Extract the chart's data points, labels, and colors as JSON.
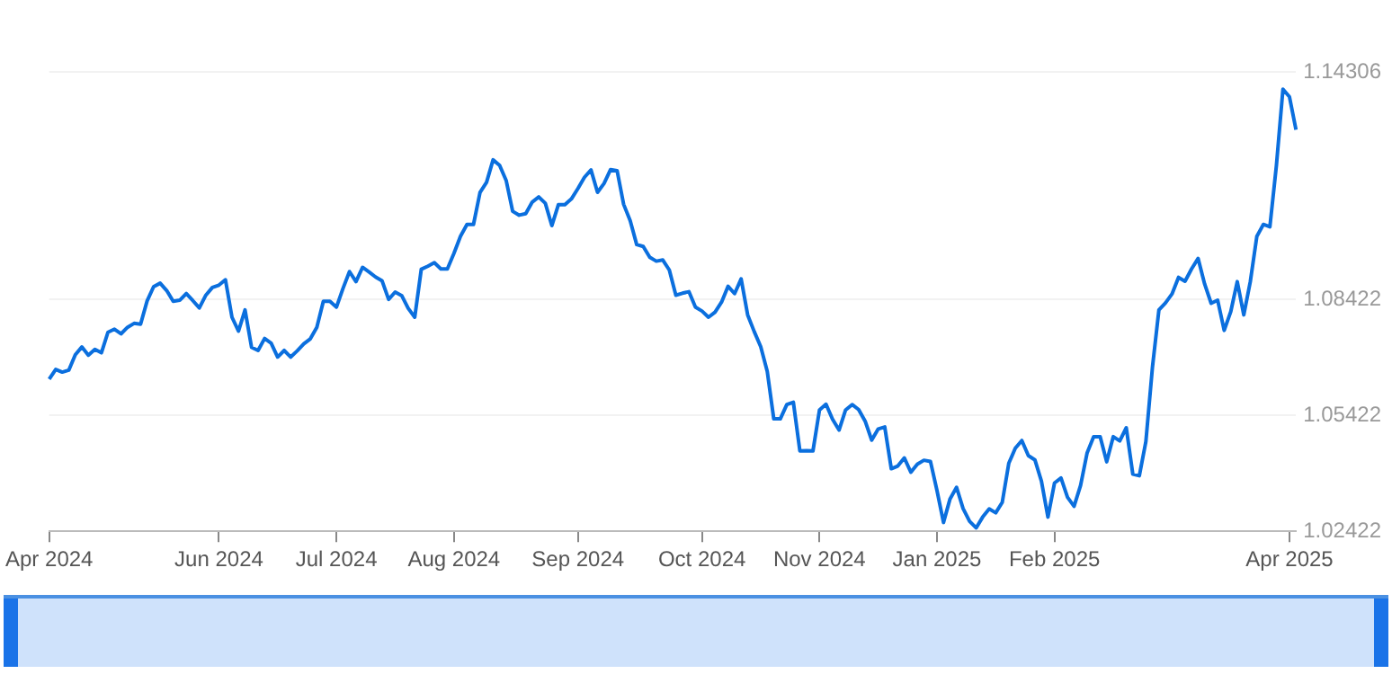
{
  "chart_data": {
    "type": "line",
    "marker": "none",
    "grid": "y",
    "categories": [
      "Apr 2024",
      null,
      null,
      null,
      null,
      null,
      null,
      null,
      null,
      null,
      null,
      null,
      null,
      null,
      null,
      null,
      null,
      null,
      null,
      null,
      null,
      null,
      null,
      null,
      null,
      null,
      "Jun 2024",
      null,
      null,
      null,
      null,
      null,
      null,
      null,
      null,
      null,
      null,
      null,
      null,
      null,
      null,
      null,
      null,
      null,
      "Jul 2024",
      null,
      null,
      null,
      null,
      null,
      null,
      null,
      null,
      null,
      null,
      null,
      null,
      null,
      null,
      null,
      null,
      null,
      "Aug 2024",
      null,
      null,
      null,
      null,
      null,
      null,
      null,
      null,
      null,
      null,
      null,
      null,
      null,
      null,
      null,
      null,
      null,
      null,
      "Sep 2024",
      null,
      null,
      null,
      null,
      null,
      null,
      null,
      null,
      null,
      null,
      null,
      null,
      null,
      null,
      null,
      null,
      null,
      null,
      "Oct 2024",
      null,
      null,
      null,
      null,
      null,
      null,
      null,
      null,
      null,
      null,
      null,
      null,
      null,
      null,
      null,
      null,
      null,
      "Nov 2024",
      null,
      null,
      null,
      null,
      null,
      null,
      null,
      null,
      null,
      null,
      null,
      null,
      null,
      null,
      null,
      null,
      null,
      "Jan 2025",
      null,
      null,
      null,
      null,
      null,
      null,
      null,
      null,
      null,
      null,
      null,
      null,
      null,
      null,
      null,
      null,
      null,
      "Feb 2025",
      null,
      null,
      null,
      null,
      null,
      null,
      null,
      null,
      null,
      null,
      null,
      null,
      null,
      null,
      null,
      null,
      null,
      null,
      null,
      null,
      null,
      null,
      null,
      null,
      null,
      null,
      null,
      null,
      null,
      null,
      null,
      null,
      null,
      null,
      null,
      "Apr 2025",
      null
    ],
    "series": [
      {
        "color": "#0b6fde",
        "values": [
          1.0636,
          1.0661,
          1.0654,
          1.0659,
          1.0699,
          1.0719,
          1.0698,
          1.0713,
          1.0704,
          1.0757,
          1.0765,
          1.0753,
          1.077,
          1.078,
          1.0778,
          1.0838,
          1.0875,
          1.0884,
          1.0865,
          1.0837,
          1.084,
          1.0857,
          1.0839,
          1.082,
          1.0853,
          1.0873,
          1.0879,
          1.0893,
          1.0796,
          1.076,
          1.0815,
          1.0718,
          1.071,
          1.0741,
          1.0729,
          1.0693,
          1.071,
          1.0693,
          1.0709,
          1.0727,
          1.074,
          1.077,
          1.0837,
          1.0837,
          1.0822,
          1.087,
          1.0914,
          1.0888,
          1.0925,
          1.0913,
          1.09,
          1.089,
          1.0842,
          1.0861,
          1.0852,
          1.0819,
          1.0796,
          1.092,
          1.0928,
          1.0937,
          1.0921,
          1.0921,
          1.0961,
          1.1005,
          1.1036,
          1.1036,
          1.1119,
          1.1145,
          1.1203,
          1.1189,
          1.115,
          1.107,
          1.106,
          1.1064,
          1.1094,
          1.1107,
          1.1091,
          1.1033,
          1.1087,
          1.1087,
          1.1102,
          1.1129,
          1.1158,
          1.1177,
          1.1119,
          1.1142,
          1.1178,
          1.1175,
          1.1088,
          1.1046,
          1.0984,
          1.0979,
          1.0951,
          1.0941,
          1.0944,
          1.0918,
          1.0853,
          1.0858,
          1.0862,
          1.0822,
          1.0812,
          1.0796,
          1.0809,
          1.0835,
          1.0876,
          1.0857,
          1.0895,
          1.0802,
          1.0759,
          1.072,
          1.0656,
          1.0533,
          1.0533,
          1.057,
          1.0576,
          1.045,
          1.0451,
          1.045,
          1.0556,
          1.0571,
          1.0532,
          1.0504,
          1.0556,
          1.057,
          1.0557,
          1.0527,
          1.0478,
          1.0507,
          1.0512,
          1.0404,
          1.0411,
          1.0432,
          1.0395,
          1.0416,
          1.0426,
          1.0423,
          1.0348,
          1.0265,
          1.0326,
          1.0356,
          1.0301,
          1.0268,
          1.0251,
          1.0279,
          1.03,
          1.029,
          1.0317,
          1.0418,
          1.0457,
          1.0477,
          1.0438,
          1.0427,
          1.0372,
          1.0279,
          1.0367,
          1.038,
          1.033,
          1.0307,
          1.0361,
          1.0445,
          1.0487,
          1.0487,
          1.0422,
          1.0487,
          1.0476,
          1.051,
          1.039,
          1.0386,
          1.0474,
          1.0665,
          1.0815,
          1.0833,
          1.0856,
          1.0899,
          1.0889,
          1.0921,
          1.0948,
          1.0882,
          1.0832,
          1.084,
          1.0762,
          1.081,
          1.0888,
          1.0802,
          1.0888,
          1.1005,
          1.1036,
          1.103,
          1.1189,
          1.1386,
          1.1366,
          1.1281
        ]
      }
    ],
    "ylim": [
      1.02422,
      1.14306
    ],
    "yticks": [
      1.02422,
      1.05422,
      1.08422,
      1.14306
    ]
  }
}
